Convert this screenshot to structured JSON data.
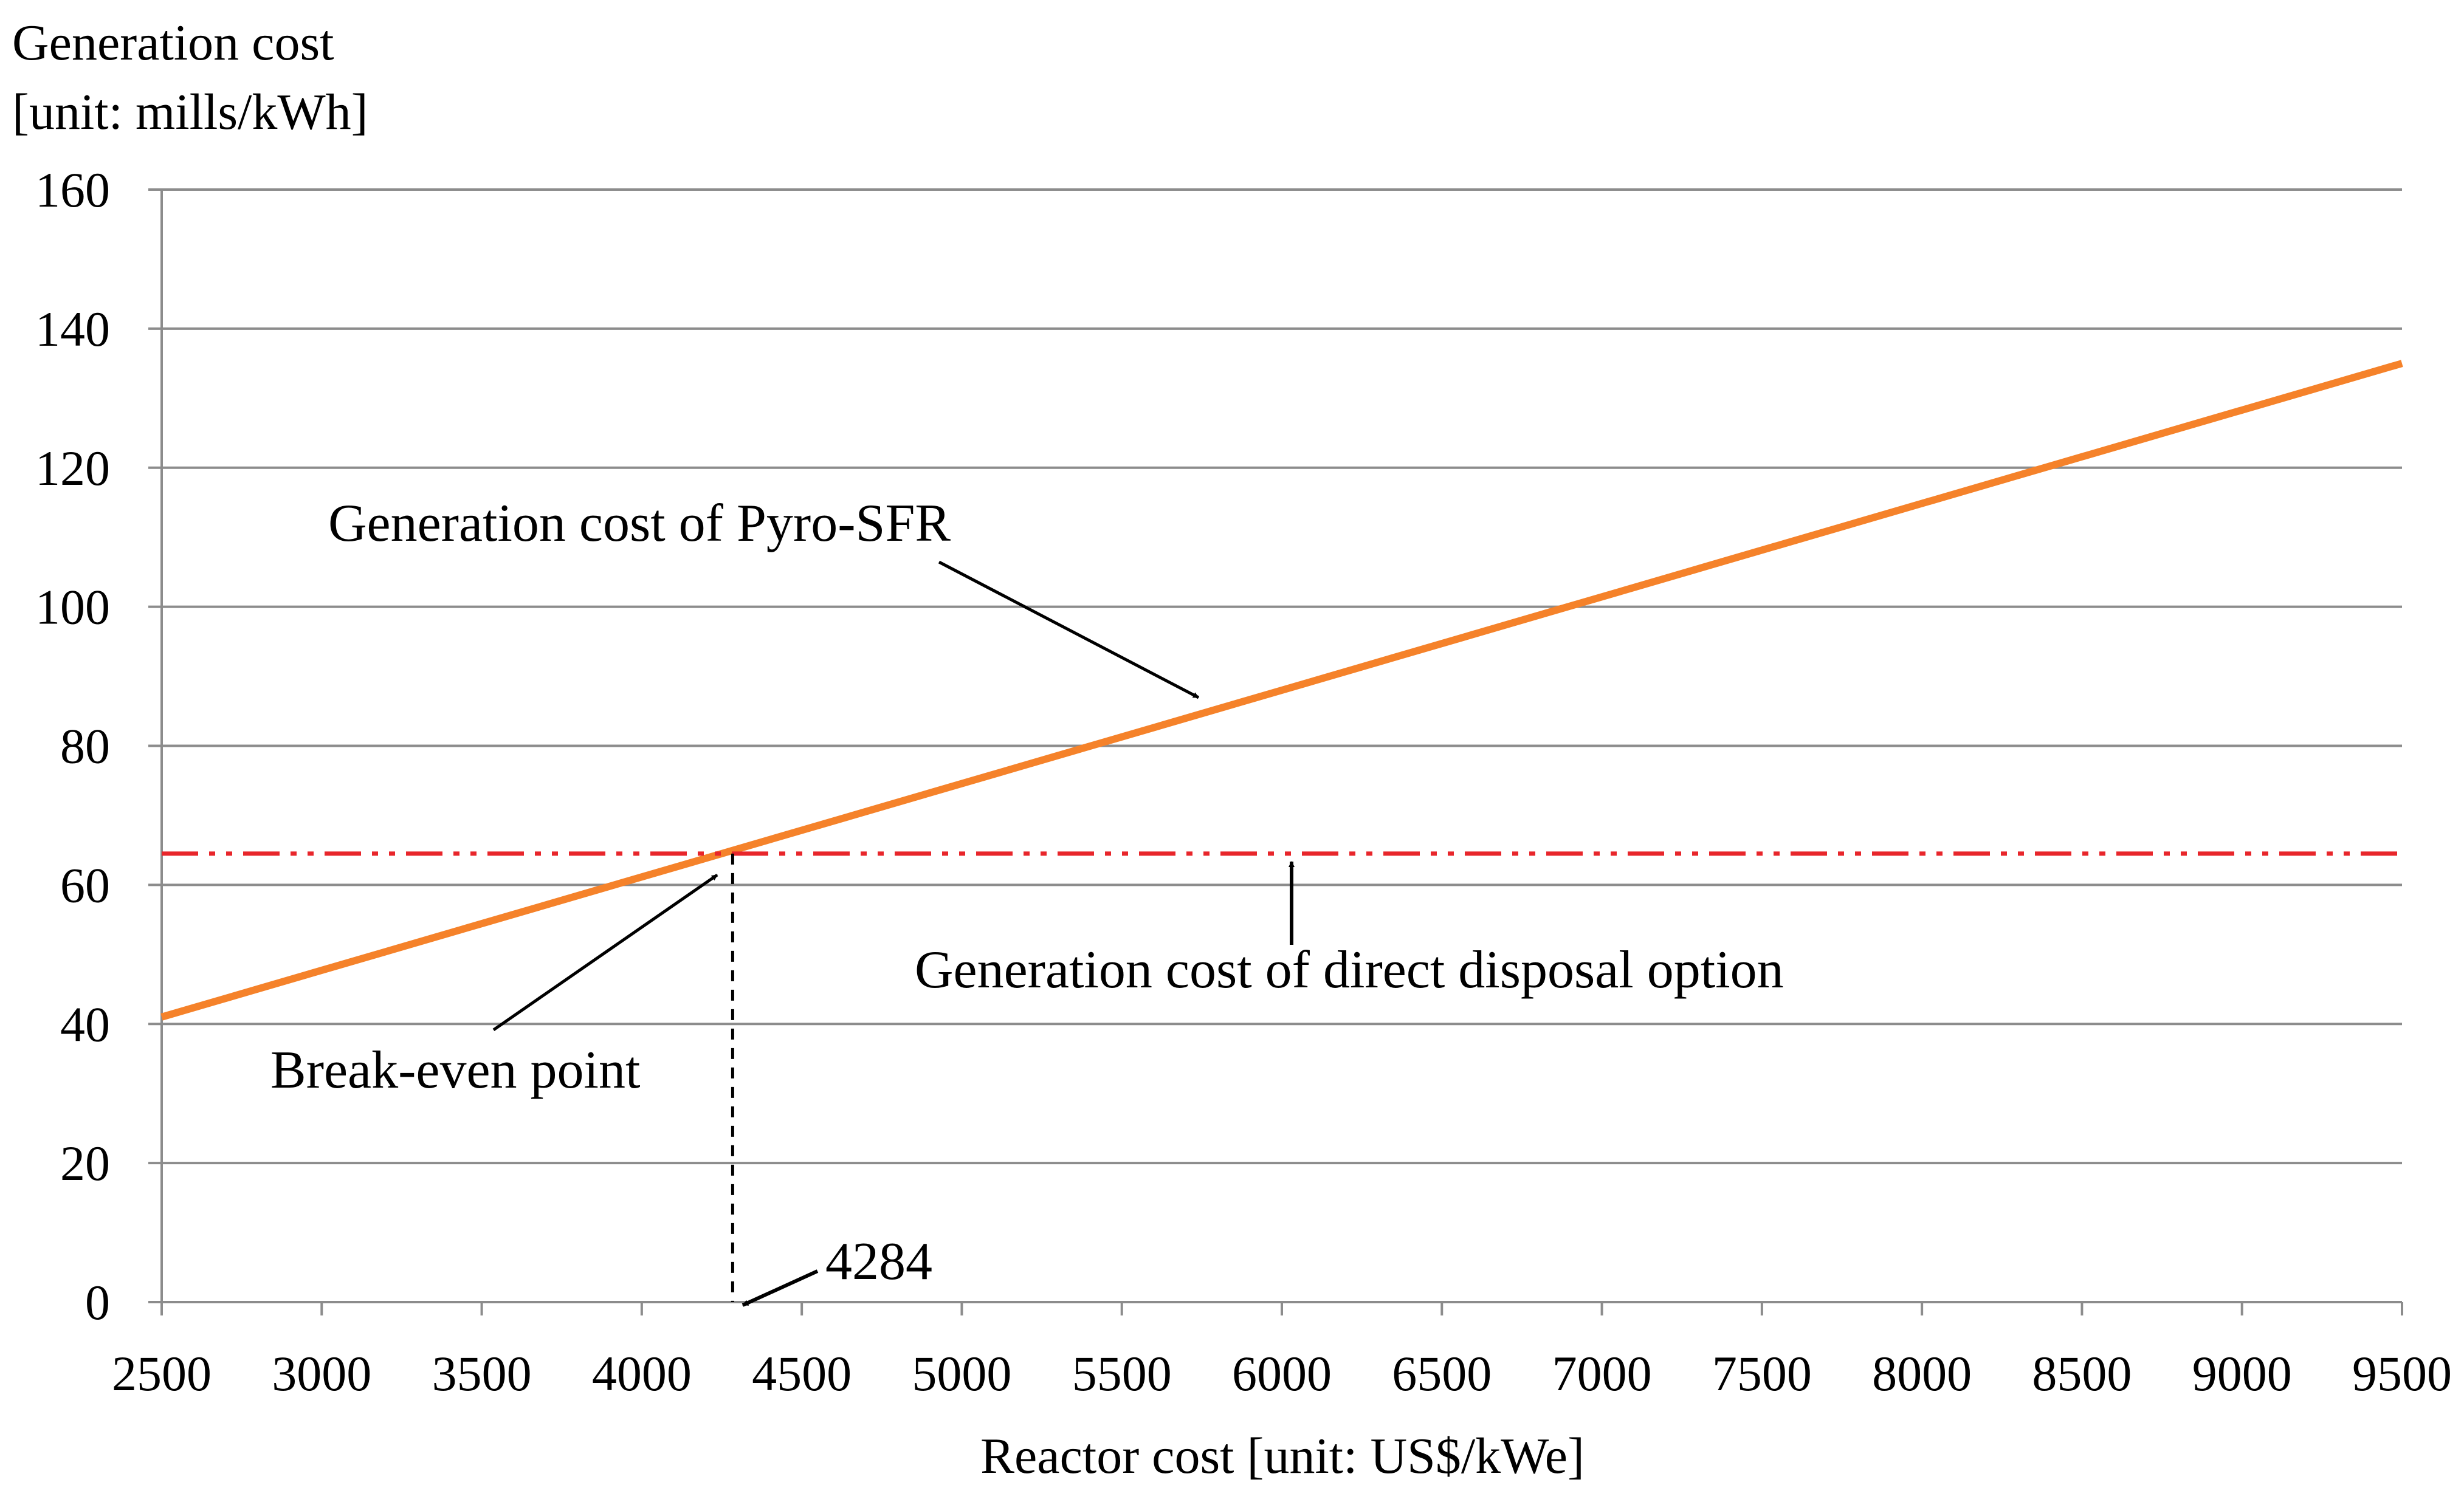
{
  "chart_data": {
    "type": "line",
    "title": "",
    "ylabel_line1": "Generation cost",
    "ylabel_line2": "[unit: mills/kWh]",
    "xlabel": "Reactor cost [unit: US$/kWe]",
    "xlim": [
      2500,
      9500
    ],
    "ylim": [
      0,
      160
    ],
    "xticks": [
      2500,
      3000,
      3500,
      4000,
      4500,
      5000,
      5500,
      6000,
      6500,
      7000,
      7500,
      8000,
      8500,
      9000,
      9500
    ],
    "yticks": [
      0,
      20,
      40,
      60,
      80,
      100,
      120,
      140,
      160
    ],
    "grid": "horizontal",
    "series": [
      {
        "name": "Generation cost of Pyro-SFR",
        "style": "solid",
        "color": "#F5822A",
        "x": [
          2500,
          9500
        ],
        "y": [
          41,
          135
        ]
      },
      {
        "name": "Generation cost of direct disposal option",
        "style": "dash-dot-dot",
        "color": "#E8262B",
        "x": [
          2500,
          9500
        ],
        "y": [
          64.5,
          64.5
        ]
      }
    ],
    "break_even": {
      "x": 4284,
      "y": 64.5,
      "label": "4284"
    },
    "annotations": {
      "pyro_label": "Generation cost of Pyro-SFR",
      "direct_label": "Generation cost of direct disposal option",
      "break_even_label": "Break-even point"
    }
  }
}
